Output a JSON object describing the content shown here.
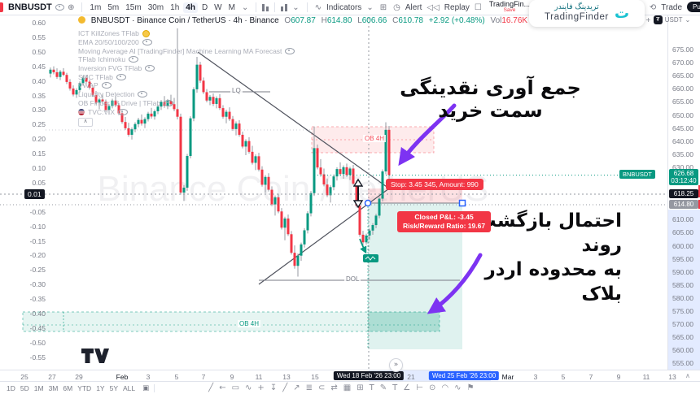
{
  "topbar": {
    "symbol": "BNBUSDT",
    "intervals": [
      "1m",
      "5m",
      "15m",
      "30m",
      "1h",
      "4h",
      "D",
      "W",
      "M"
    ],
    "active_interval": "4h",
    "indicators_label": "Indicators",
    "alert_label": "Alert",
    "replay_label": "Replay",
    "layout_name": "TradingFin...",
    "save_label": "Save",
    "trade_label": "Trade",
    "publish_label": "Pu"
  },
  "brand": {
    "fa": "تریدینگ فایندر",
    "en": "TradingFinder"
  },
  "legend": {
    "title": "BNBUSDT · Binance Coin / TetherUS · 4h · Binance",
    "o_label": "O",
    "o": "607.87",
    "h_label": "H",
    "h": "614.80",
    "l_label": "L",
    "l": "606.66",
    "c_label": "C",
    "c": "610.78",
    "change": "+2.92 (+0.48%)",
    "vol_label": "Vol",
    "vol": "16.76K",
    "vol_change": "+0.77 (+0.12%)"
  },
  "indicators": [
    {
      "name": "ICT KillZones TFlab",
      "icon": "timer"
    },
    {
      "name": "EMA 20/50/100/200",
      "icon": "eye"
    },
    {
      "name": "Moving Average AI [TradingFinder] Machine Learning MA Forecast",
      "icon": "eye"
    },
    {
      "name": "TFlab Ichimoku",
      "icon": "eye"
    },
    {
      "name": "Inversion FVG TFlab",
      "icon": "eye"
    },
    {
      "name": "SMC TFlab",
      "icon": "eye"
    },
    {
      "name": "VWAP",
      "icon": "eye"
    },
    {
      "name": "Liquidity Detection",
      "icon": "eye"
    },
    {
      "name": "OB Finder | 3 Drive | TFlab",
      "icon": "eye"
    },
    {
      "name": "TVC:VIX",
      "icon": "eye",
      "flag": true
    }
  ],
  "left_axis": {
    "ticks": [
      "0.60",
      "0.55",
      "0.50",
      "0.45",
      "0.40",
      "0.35",
      "0.30",
      "0.25",
      "0.20",
      "0.15",
      "0.10",
      "0.05",
      "-0.05",
      "-0.10",
      "-0.15",
      "-0.20",
      "-0.25",
      "-0.30",
      "-0.35",
      "-0.40",
      "-0.45",
      "-0.50",
      "-0.55"
    ],
    "crosshair_value": "0.01"
  },
  "right_axis": {
    "unit": "USDT",
    "ticks": [
      "675.00",
      "670.00",
      "665.00",
      "660.00",
      "655.00",
      "650.00",
      "645.00",
      "640.00",
      "635.00",
      "630.00",
      "625.00",
      "620.00",
      "615.00",
      "610.00",
      "605.00",
      "600.00",
      "595.00",
      "590.00",
      "585.00",
      "580.00",
      "575.00",
      "570.00",
      "565.00",
      "560.00",
      "555.00"
    ],
    "badges": {
      "last_price": "626.68",
      "countdown": "03:12:40",
      "crosshair": "618.25",
      "level": "614.80",
      "tag": "BNBUSDT"
    }
  },
  "time_axis": {
    "ticks": [
      [
        "25",
        30
      ],
      [
        "27",
        64
      ],
      [
        "29",
        97
      ],
      [
        "Feb",
        150
      ],
      [
        "3",
        182
      ],
      [
        "5",
        217
      ],
      [
        "7",
        250
      ],
      [
        "9",
        285
      ],
      [
        "11",
        318
      ],
      [
        "13",
        352
      ],
      [
        "15",
        387
      ],
      [
        "21",
        505
      ],
      [
        "23",
        537
      ],
      [
        "Mar",
        624
      ],
      [
        "3",
        658
      ],
      [
        "5",
        692
      ],
      [
        "7",
        726
      ],
      [
        "9",
        760
      ],
      [
        "11",
        794
      ],
      [
        "13",
        826
      ]
    ],
    "badge_black": "Wed 18 Feb '26  23:00",
    "badge_blue": "Wed 25 Feb '26  23:00"
  },
  "chart": {
    "watermark": "Binance Coin / TetherUS",
    "labels": {
      "lq": "LQ",
      "dol": "DOL",
      "ob1": "OB 4H",
      "ob2": "OB 4H"
    },
    "stop_badge": "Stop: 3.45 345, Amount: 990",
    "pnl_line1": "Closed P&L: -3.45",
    "pnl_line2": "Risk/Reward Ratio: 19.67",
    "annotations": {
      "a1": "جمع آوری نقدینگی سمت خرید",
      "a2_line1": "احتمال بازگشت روند",
      "a2_line2": "به محدوده اردر بلاک"
    },
    "candles": [
      [
        665.5,
        667.8,
        664.0,
        667.0
      ],
      [
        667.0,
        668.3,
        665.2,
        666.0
      ],
      [
        666.0,
        667.5,
        663.5,
        664.2
      ],
      [
        664.2,
        666.9,
        663.0,
        666.2
      ],
      [
        666.2,
        667.6,
        664.5,
        665.0
      ],
      [
        665.0,
        665.8,
        661.5,
        662.3
      ],
      [
        662.3,
        663.4,
        659.0,
        659.8
      ],
      [
        659.8,
        661.0,
        656.8,
        657.5
      ],
      [
        657.5,
        659.9,
        656.2,
        659.2
      ],
      [
        659.2,
        662.5,
        658.4,
        661.8
      ],
      [
        661.8,
        664.6,
        660.9,
        663.9
      ],
      [
        663.9,
        665.0,
        661.7,
        662.4
      ],
      [
        662.4,
        663.2,
        659.4,
        660.1
      ],
      [
        660.1,
        660.9,
        656.6,
        657.3
      ],
      [
        657.3,
        658.8,
        653.8,
        654.4
      ],
      [
        654.4,
        656.3,
        651.9,
        655.6
      ],
      [
        655.6,
        657.7,
        653.9,
        654.8
      ],
      [
        654.8,
        655.6,
        650.9,
        651.6
      ],
      [
        651.6,
        653.8,
        649.8,
        653.1
      ],
      [
        653.1,
        655.9,
        652.2,
        655.2
      ],
      [
        655.2,
        656.8,
        652.7,
        653.4
      ],
      [
        653.4,
        654.2,
        649.6,
        650.3
      ],
      [
        650.3,
        651.1,
        646.3,
        647.0
      ],
      [
        647.0,
        648.9,
        643.9,
        644.6
      ],
      [
        644.6,
        646.7,
        641.4,
        642.1
      ],
      [
        642.1,
        644.9,
        640.3,
        644.2
      ],
      [
        644.2,
        646.9,
        643.1,
        646.2
      ],
      [
        646.2,
        648.6,
        645.0,
        647.8
      ],
      [
        647.8,
        649.9,
        645.6,
        646.4
      ],
      [
        646.4,
        648.8,
        644.7,
        648.1
      ],
      [
        648.1,
        650.9,
        647.2,
        650.2
      ],
      [
        650.2,
        652.4,
        648.3,
        649.1
      ],
      [
        649.1,
        651.8,
        647.9,
        651.1
      ],
      [
        651.1,
        653.6,
        650.0,
        652.9
      ],
      [
        652.9,
        655.4,
        651.6,
        654.7
      ],
      [
        654.7,
        656.9,
        652.4,
        653.2
      ],
      [
        653.2,
        655.8,
        651.9,
        655.1
      ],
      [
        655.1,
        657.4,
        653.0,
        653.8
      ],
      [
        653.8,
        656.2,
        651.1,
        651.9
      ],
      [
        651.9,
        682.8,
        648.0,
        649.0
      ],
      [
        649.0,
        650.2,
        619.2,
        620.0
      ],
      [
        620.0,
        622.9,
        616.8,
        621.9
      ],
      [
        621.9,
        634.8,
        620.7,
        634.0
      ],
      [
        634.0,
        649.2,
        633.1,
        648.4
      ],
      [
        648.4,
        660.3,
        647.3,
        659.5
      ],
      [
        659.5,
        671.9,
        658.2,
        668.9
      ],
      [
        668.9,
        670.0,
        661.9,
        662.8
      ],
      [
        662.8,
        664.0,
        657.7,
        658.4
      ],
      [
        658.4,
        659.6,
        654.5,
        655.2
      ],
      [
        655.2,
        657.3,
        653.4,
        656.6
      ],
      [
        656.6,
        657.9,
        653.1,
        653.9
      ],
      [
        653.9,
        656.8,
        652.2,
        656.1
      ],
      [
        656.1,
        657.7,
        651.6,
        652.3
      ],
      [
        652.3,
        653.4,
        648.3,
        649.0
      ],
      [
        649.0,
        651.7,
        646.5,
        650.9
      ],
      [
        650.9,
        652.6,
        647.4,
        648.1
      ],
      [
        648.1,
        649.3,
        643.6,
        644.3
      ],
      [
        644.3,
        647.2,
        641.9,
        646.4
      ],
      [
        646.4,
        647.7,
        641.4,
        642.1
      ],
      [
        642.1,
        643.3,
        636.9,
        637.6
      ],
      [
        637.6,
        640.4,
        634.3,
        639.7
      ],
      [
        639.7,
        641.2,
        634.9,
        635.6
      ],
      [
        635.6,
        637.9,
        630.7,
        631.4
      ],
      [
        631.4,
        634.6,
        628.6,
        633.9
      ],
      [
        633.9,
        635.2,
        628.1,
        628.8
      ],
      [
        628.8,
        630.1,
        622.3,
        623.0
      ],
      [
        623.0,
        626.7,
        619.9,
        626.0
      ],
      [
        626.0,
        627.4,
        620.4,
        621.1
      ],
      [
        621.1,
        622.4,
        614.8,
        615.5
      ],
      [
        615.5,
        618.9,
        611.2,
        618.2
      ],
      [
        618.2,
        619.6,
        612.1,
        612.8
      ],
      [
        612.8,
        614.1,
        605.9,
        606.6
      ],
      [
        606.6,
        610.8,
        601.8,
        610.1
      ],
      [
        610.1,
        611.6,
        603.4,
        604.1
      ],
      [
        604.1,
        605.3,
        596.3,
        597.0
      ],
      [
        597.0,
        599.8,
        590.9,
        592.0
      ],
      [
        592.0,
        596.7,
        587.9,
        595.9
      ],
      [
        595.9,
        600.9,
        593.9,
        600.2
      ],
      [
        600.2,
        606.4,
        599.0,
        605.6
      ],
      [
        605.6,
        612.9,
        604.4,
        612.1
      ],
      [
        612.1,
        620.6,
        610.9,
        619.8
      ],
      [
        619.8,
        645.3,
        618.7,
        637.0
      ],
      [
        637.0,
        638.4,
        628.9,
        629.6
      ],
      [
        629.6,
        632.8,
        626.1,
        627.0
      ],
      [
        627.0,
        629.2,
        622.4,
        623.1
      ],
      [
        623.1,
        625.4,
        618.3,
        619.0
      ],
      [
        619.0,
        622.8,
        616.2,
        622.1
      ],
      [
        622.1,
        626.9,
        620.9,
        626.2
      ],
      [
        626.2,
        629.7,
        624.6,
        629.0
      ],
      [
        629.0,
        631.6,
        626.4,
        627.1
      ],
      [
        627.1,
        630.4,
        625.3,
        629.7
      ],
      [
        629.7,
        631.1,
        626.0,
        626.7
      ],
      [
        626.7,
        629.9,
        624.8,
        629.2
      ],
      [
        629.2,
        630.6,
        622.7,
        623.4
      ],
      [
        623.4,
        624.6,
        614.3,
        615.0
      ],
      [
        615.0,
        616.1,
        603.1,
        603.9
      ],
      [
        603.9,
        605.4,
        599.9,
        601.0
      ],
      [
        601.0,
        604.3,
        600.1,
        603.6
      ],
      [
        603.6,
        606.2,
        601.9,
        605.5
      ],
      [
        605.5,
        608.3,
        603.9,
        607.6
      ],
      [
        607.6,
        611.9,
        606.4,
        611.2
      ],
      [
        611.2,
        618.4,
        610.2,
        617.7
      ],
      [
        617.7,
        628.9,
        616.6,
        628.1
      ],
      [
        628.1,
        646.9,
        627.0,
        644.0
      ],
      [
        644.0,
        645.5,
        623.9,
        626.7
      ]
    ]
  },
  "bottom": {
    "ranges": [
      "1D",
      "5D",
      "1M",
      "3M",
      "6M",
      "YTD",
      "1Y",
      "5Y",
      "ALL"
    ],
    "tools": [
      {
        "glyph": "╱",
        "name": "trend-line-tool"
      },
      {
        "glyph": "←",
        "name": "arrow-left-tool"
      },
      {
        "glyph": "▭",
        "name": "rectangle-tool"
      },
      {
        "glyph": "∿",
        "name": "wave-tool"
      },
      {
        "glyph": "+",
        "name": "cross-tool"
      },
      {
        "glyph": "↧",
        "name": "arrow-down-tool"
      },
      {
        "glyph": "╱",
        "name": "ray-tool"
      },
      {
        "glyph": "↗",
        "name": "arrow-up-tool"
      },
      {
        "glyph": "≣",
        "name": "parallel-channel-tool"
      },
      {
        "glyph": "⊂",
        "name": "arc-tool"
      },
      {
        "glyph": "⇄",
        "name": "swap-tool"
      },
      {
        "glyph": "▦",
        "name": "grid-tool"
      },
      {
        "glyph": "⊞",
        "name": "layout-grid-tool"
      },
      {
        "glyph": "T",
        "name": "text-tool"
      },
      {
        "glyph": "✎",
        "name": "pencil-tool"
      },
      {
        "glyph": "T",
        "name": "title-tool"
      },
      {
        "glyph": "∠",
        "name": "angle-tool"
      },
      {
        "glyph": "⊢",
        "name": "horizontal-ray-tool"
      },
      {
        "glyph": "⊙",
        "name": "circle-tool"
      },
      {
        "glyph": "◠",
        "name": "curve-tool"
      },
      {
        "glyph": "∿",
        "name": "squiggle-tool"
      },
      {
        "glyph": "⚑",
        "name": "flag-tool"
      }
    ],
    "clock": "03:47:20 UTC-5"
  },
  "colors": {
    "up": "#089981",
    "down": "#f23645",
    "wick": "#9598a1",
    "purple": "#7d33f2",
    "accent_blue": "#2962ff",
    "badge_dark": "#131722",
    "stop_red": "#f23645",
    "brand_teal": "#19c2d1"
  }
}
